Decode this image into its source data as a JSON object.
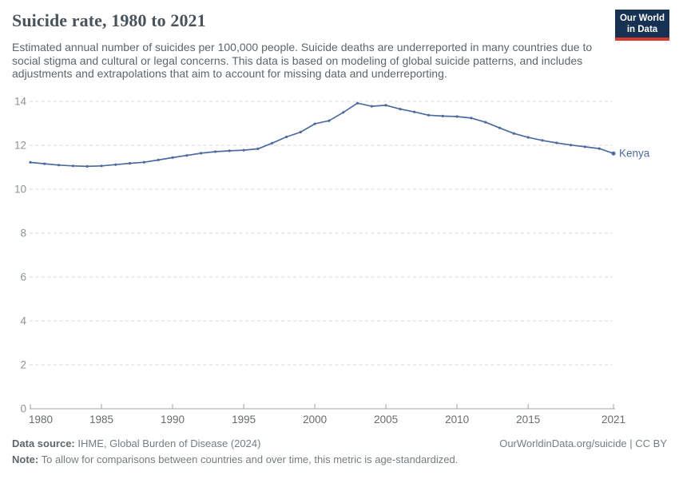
{
  "header": {
    "title": "Suicide rate, 1980 to 2021",
    "subtitle": "Estimated annual number of suicides per 100,000 people. Suicide deaths are underreported in many countries due to social stigma and cultural or legal concerns. This data is based on modeling of global suicide patterns, and includes adjustments and extrapolations that aim to account for missing data and underreporting.",
    "logo": {
      "line1": "Our World",
      "line2": "in Data",
      "bg_color": "#163152",
      "accent_color": "#d43b2d"
    }
  },
  "chart_data": {
    "type": "line",
    "title": "Suicide rate, 1980 to 2021",
    "xlabel": "",
    "ylabel": "",
    "grid": "horizontal-dashed",
    "legend_position": "end-of-line",
    "xlim": [
      1980,
      2021
    ],
    "ylim": [
      0,
      14.6
    ],
    "x_ticks": [
      1980,
      1985,
      1990,
      1995,
      2000,
      2005,
      2010,
      2015,
      2021
    ],
    "y_ticks": [
      0,
      2,
      4,
      6,
      8,
      10,
      12,
      14
    ],
    "x": [
      1980,
      1981,
      1982,
      1983,
      1984,
      1985,
      1986,
      1987,
      1988,
      1989,
      1990,
      1991,
      1992,
      1993,
      1994,
      1995,
      1996,
      1997,
      1998,
      1999,
      2000,
      2001,
      2002,
      2003,
      2004,
      2005,
      2006,
      2007,
      2008,
      2009,
      2010,
      2011,
      2012,
      2013,
      2014,
      2015,
      2016,
      2017,
      2018,
      2019,
      2020,
      2021
    ],
    "series": [
      {
        "name": "Kenya",
        "color": "#4d6b9f",
        "values": [
          11.22,
          11.16,
          11.1,
          11.06,
          11.04,
          11.06,
          11.12,
          11.18,
          11.23,
          11.33,
          11.44,
          11.54,
          11.64,
          11.71,
          11.75,
          11.78,
          11.84,
          12.1,
          12.38,
          12.6,
          12.98,
          13.12,
          13.5,
          13.92,
          13.78,
          13.82,
          13.65,
          13.52,
          13.37,
          13.33,
          13.31,
          13.24,
          13.05,
          12.79,
          12.54,
          12.36,
          12.22,
          12.11,
          12.01,
          11.93,
          11.85,
          11.63
        ]
      }
    ],
    "colors": {
      "gridline": "#dadada",
      "axis": "#a3a3a3",
      "y_tick_label": "#8d9297",
      "x_tick_label": "#686c6f"
    }
  },
  "footer": {
    "datasource_label": "Data source:",
    "datasource_text": " IHME, Global Burden of Disease (2024)",
    "license": "OurWorldinData.org/suicide | CC BY",
    "note_label": "Note:",
    "note_text": " To allow for comparisons between countries and over time, this metric is age-standardized."
  }
}
